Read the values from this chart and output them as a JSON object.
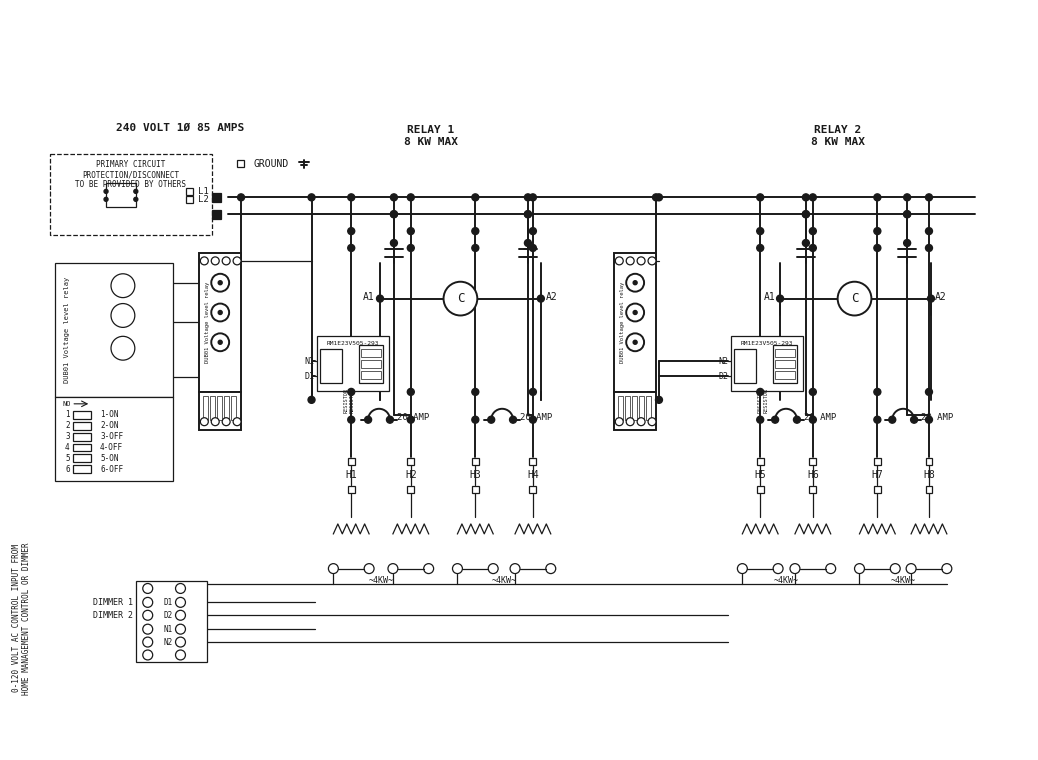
{
  "bg_color": "#ffffff",
  "lc": "#1a1a1a",
  "voltage_label": "240 VOLT 1Ø 85 AMPS",
  "relay1_label": "RELAY 1\n8 KW MAX",
  "relay2_label": "RELAY 2\n8 KW MAX",
  "primary_circuit_text": "PRIMARY CIRCUIT\nPROTECTION/DISCONNECT\nTO BE PROVIDED BY OTHERS",
  "ground_label": "GROUND",
  "dub01_label": "DUB01 Voltage level relay",
  "rm_label": "RM1E23V505-293",
  "dimmer1_label": "DIMMER 1",
  "dimmer2_label": "DIMMER 2",
  "vertical_label": "0-120 VOLT AC CONTROL INPUT FROM\nHOME MANAGEMENT CONTROL OR DIMMER",
  "dip_labels": [
    "1-ON",
    "2-ON",
    "3-OFF",
    "4-OFF",
    "5-ON",
    "6-OFF"
  ],
  "h_labels_1": [
    "H1",
    "H2",
    "H3",
    "H4"
  ],
  "h_labels_2": [
    "H5",
    "H6",
    "H7",
    "H8"
  ],
  "lw": 1.4,
  "lw_thin": 0.9
}
